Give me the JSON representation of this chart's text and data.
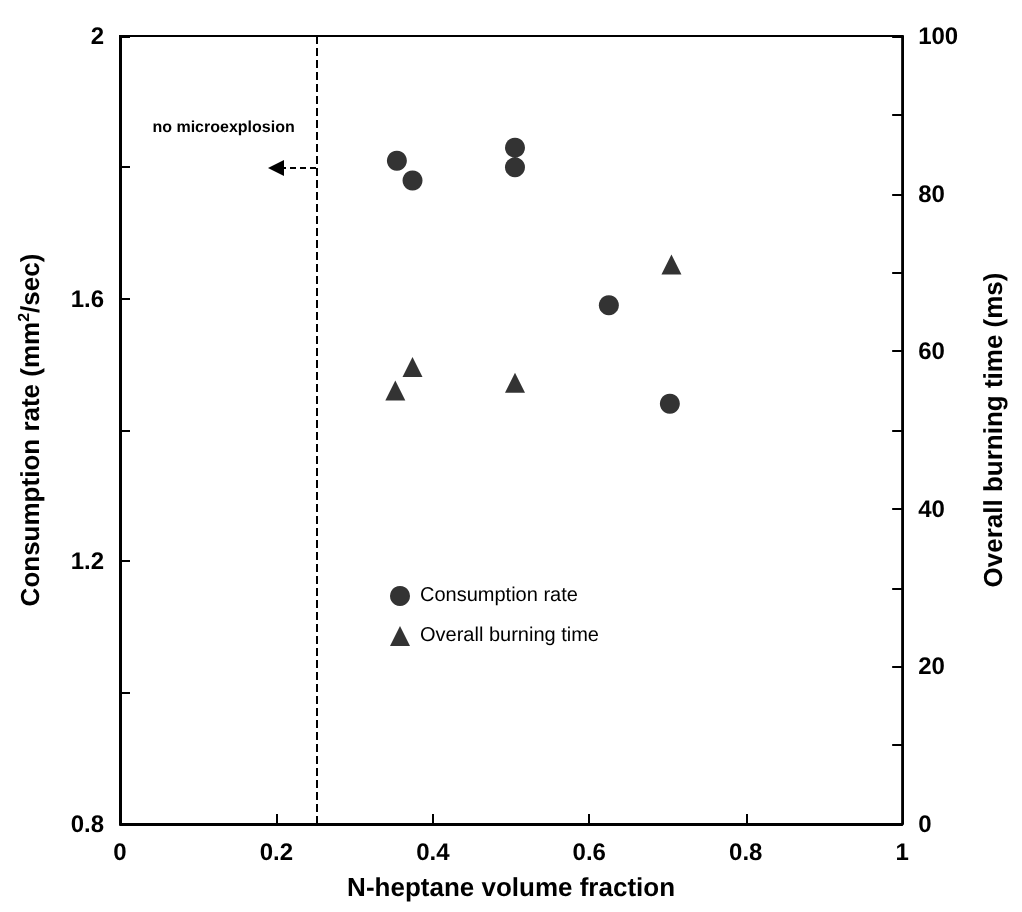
{
  "chart_data": {
    "type": "scatter",
    "xlabel": "N-heptane volume fraction",
    "ylabel": "Consumption rate (mm$^{2}$/sec)",
    "y2label": "Overall burning time (ms)",
    "xlim": [
      0,
      1
    ],
    "xticks": [
      0,
      0.2,
      0.4,
      0.6,
      0.8,
      1
    ],
    "ylim": [
      0.8,
      2
    ],
    "yticks": [
      0.8,
      {
        "value": 1,
        "label": null
      },
      1.2,
      {
        "value": 1.4,
        "label": null
      },
      1.6,
      {
        "value": 1.8,
        "label": null
      },
      2
    ],
    "y2lim": [
      0,
      100
    ],
    "y2ticks": [
      0,
      {
        "value": 10,
        "label": null
      },
      20,
      {
        "value": 30,
        "label": null
      },
      40,
      {
        "value": 50,
        "label": null
      },
      60,
      {
        "value": 70,
        "label": null
      },
      80,
      {
        "value": 90,
        "label": null
      },
      100
    ],
    "series": [
      {
        "name": "Consumption rate",
        "color": "#000000",
        "marker": "circle",
        "x": [
          0.354,
          0.374,
          0.505,
          0.505,
          0.625,
          0.703
        ],
        "values": [
          1.81,
          1.78,
          1.83,
          1.8,
          1.59,
          1.44
        ]
      },
      {
        "name": "Overall burning time",
        "color": "#000000",
        "marker": "triangle",
        "axis": "y2",
        "x": [
          0.352,
          0.374,
          0.505,
          0.705
        ],
        "values": [
          55,
          58,
          56,
          71
        ]
      }
    ],
    "ref_lines": [
      {
        "axis": "x",
        "value": 0.25,
        "line_style": "dashed",
        "color": "#000000"
      }
    ],
    "annotations": [
      {
        "text": "no microexplosion",
        "x": 0.2,
        "y": 1.8
      }
    ],
    "grid": false,
    "legend": "bottom"
  }
}
